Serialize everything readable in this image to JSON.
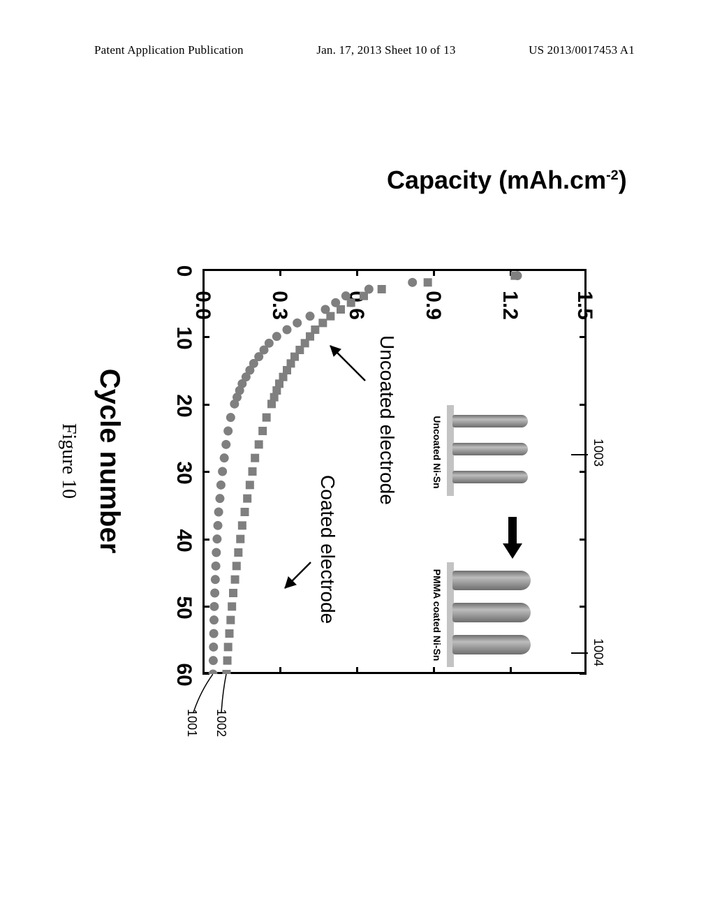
{
  "header": {
    "left": "Patent Application Publication",
    "center": "Jan. 17, 2013  Sheet 10 of 13",
    "right": "US 2013/0017453 A1"
  },
  "chart": {
    "type": "scatter",
    "ylabel_html": "Capacity (mAh.cm<sup>-2</sup>)",
    "ylabel_plain": "Capacity (mAh.cm-2)",
    "xlabel": "Cycle number",
    "caption": "Figure 10",
    "xlim": [
      0,
      60
    ],
    "ylim": [
      0.0,
      1.5
    ],
    "xticks": [
      0,
      10,
      20,
      30,
      40,
      50,
      60
    ],
    "yticks": [
      "0.0",
      "0.3",
      "0.6",
      "0.9",
      "1.2",
      "1.5"
    ],
    "background_color": "#ffffff",
    "axis_color": "#000000",
    "series": [
      {
        "name": "Uncoated electrode",
        "label": "Uncoated electrode",
        "marker": "circle",
        "color": "#7f7f7f",
        "data": [
          [
            1,
            1.23
          ],
          [
            2,
            0.82
          ],
          [
            3,
            0.65
          ],
          [
            4,
            0.56
          ],
          [
            5,
            0.52
          ],
          [
            6,
            0.48
          ],
          [
            7,
            0.42
          ],
          [
            8,
            0.37
          ],
          [
            9,
            0.33
          ],
          [
            10,
            0.29
          ],
          [
            11,
            0.26
          ],
          [
            12,
            0.24
          ],
          [
            13,
            0.22
          ],
          [
            14,
            0.2
          ],
          [
            15,
            0.185
          ],
          [
            16,
            0.17
          ],
          [
            17,
            0.155
          ],
          [
            18,
            0.145
          ],
          [
            19,
            0.135
          ],
          [
            20,
            0.125
          ],
          [
            22,
            0.11
          ],
          [
            24,
            0.1
          ],
          [
            26,
            0.092
          ],
          [
            28,
            0.085
          ],
          [
            30,
            0.078
          ],
          [
            32,
            0.072
          ],
          [
            34,
            0.068
          ],
          [
            36,
            0.063
          ],
          [
            38,
            0.06
          ],
          [
            40,
            0.057
          ],
          [
            42,
            0.054
          ],
          [
            44,
            0.052
          ],
          [
            46,
            0.05
          ],
          [
            48,
            0.048
          ],
          [
            50,
            0.046
          ],
          [
            52,
            0.045
          ],
          [
            54,
            0.044
          ],
          [
            56,
            0.043
          ],
          [
            58,
            0.042
          ],
          [
            60,
            0.041
          ]
        ]
      },
      {
        "name": "Coated electrode",
        "label": "Coated electrode",
        "marker": "square",
        "color": "#7f7f7f",
        "data": [
          [
            1,
            1.22
          ],
          [
            2,
            0.88
          ],
          [
            3,
            0.7
          ],
          [
            4,
            0.63
          ],
          [
            5,
            0.58
          ],
          [
            6,
            0.54
          ],
          [
            7,
            0.5
          ],
          [
            8,
            0.47
          ],
          [
            9,
            0.44
          ],
          [
            10,
            0.42
          ],
          [
            11,
            0.4
          ],
          [
            12,
            0.38
          ],
          [
            13,
            0.36
          ],
          [
            14,
            0.345
          ],
          [
            15,
            0.33
          ],
          [
            16,
            0.315
          ],
          [
            17,
            0.3
          ],
          [
            18,
            0.29
          ],
          [
            19,
            0.28
          ],
          [
            20,
            0.27
          ],
          [
            22,
            0.25
          ],
          [
            24,
            0.235
          ],
          [
            26,
            0.22
          ],
          [
            28,
            0.205
          ],
          [
            30,
            0.195
          ],
          [
            32,
            0.185
          ],
          [
            34,
            0.175
          ],
          [
            36,
            0.165
          ],
          [
            38,
            0.155
          ],
          [
            40,
            0.148
          ],
          [
            42,
            0.14
          ],
          [
            44,
            0.133
          ],
          [
            46,
            0.127
          ],
          [
            48,
            0.12
          ],
          [
            50,
            0.115
          ],
          [
            52,
            0.11
          ],
          [
            54,
            0.105
          ],
          [
            56,
            0.1
          ],
          [
            58,
            0.097
          ],
          [
            60,
            0.094
          ]
        ]
      }
    ],
    "inset": {
      "left_label": "Uncoated Ni-Sn",
      "right_label": "PMMA coated Ni-Sn"
    },
    "callouts": {
      "c1001": "1001",
      "c1002": "1002",
      "c1003": "1003",
      "c1004": "1004"
    }
  }
}
